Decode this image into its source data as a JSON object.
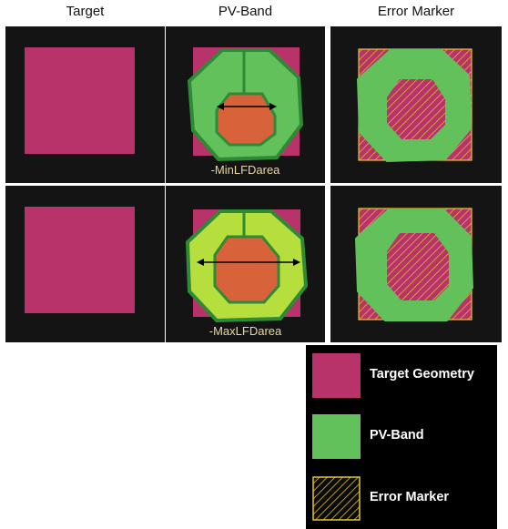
{
  "headers": {
    "target": "Target",
    "pvband": "PV-Band",
    "error": "Error Marker"
  },
  "captions": {
    "min": "-MinLFDarea",
    "max": "-MaxLFDarea"
  },
  "legend": {
    "target_label": "Target Geometry",
    "pvband_label": "PV-Band",
    "error_label": "Error Marker"
  },
  "colors": {
    "panel_bg": "#141414",
    "target": "#b8336a",
    "pvband": "#62c15a",
    "pvband_light": "#b6de3c",
    "pvband_outline": "#2f8a35",
    "inner": "#d8623a",
    "error_hatch": "#e3c52c",
    "caption_text": "#e9d6a2"
  }
}
